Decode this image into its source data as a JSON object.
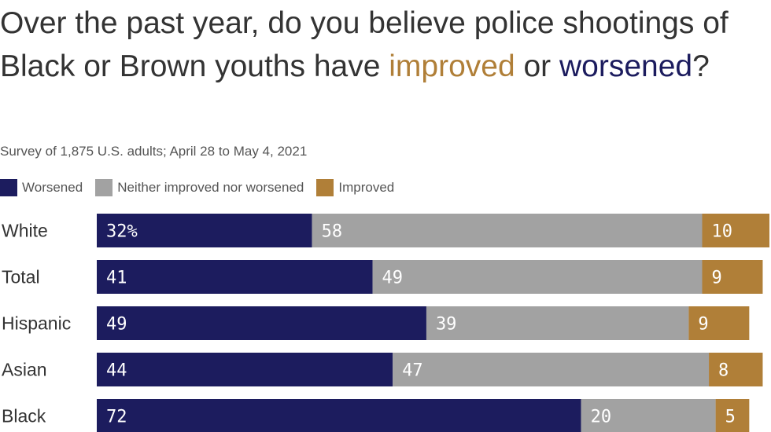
{
  "colors": {
    "worsened": "#1c1c5e",
    "neither": "#a2a2a2",
    "improved": "#b07f38",
    "text": "#333333"
  },
  "title": {
    "part1": "Over the past year, do you believe police shootings of Black or Brown youths have ",
    "improved": "improved",
    "part2": " or ",
    "worsened": "worsened",
    "part3": "?"
  },
  "subtitle": "Survey of 1,875 U.S. adults; April 28 to May 4, 2021",
  "legend": [
    {
      "label": "Worsened",
      "color": "#1c1c5e"
    },
    {
      "label": "Neither improved nor worsened",
      "color": "#a2a2a2"
    },
    {
      "label": "Improved",
      "color": "#b07f38"
    }
  ],
  "chart_data": {
    "type": "bar",
    "orientation": "horizontal",
    "stacked": true,
    "categories": [
      "White",
      "Total",
      "Hispanic",
      "Asian",
      "Black"
    ],
    "series": [
      {
        "name": "Worsened",
        "values": [
          32,
          41,
          49,
          44,
          72
        ],
        "labels": [
          "32%",
          "41",
          "49",
          "44",
          "72"
        ]
      },
      {
        "name": "Neither improved nor worsened",
        "values": [
          58,
          49,
          39,
          47,
          20
        ],
        "labels": [
          "58",
          "49",
          "39",
          "47",
          "20"
        ]
      },
      {
        "name": "Improved",
        "values": [
          10,
          9,
          9,
          8,
          5
        ],
        "labels": [
          "10",
          "9",
          "9",
          "8",
          "5"
        ]
      }
    ],
    "xlim": [
      0,
      100
    ],
    "grid": false,
    "legend_position": "top-left"
  }
}
